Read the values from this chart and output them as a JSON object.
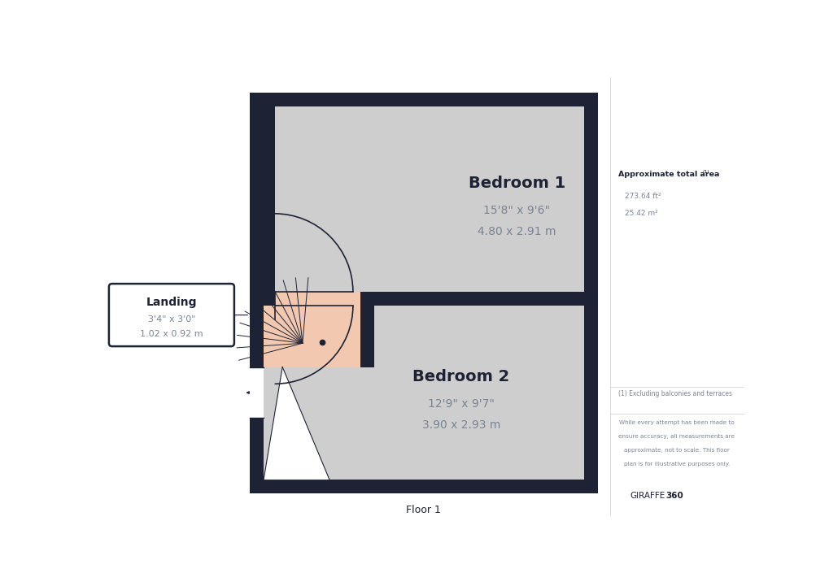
{
  "bg_color": "#ffffff",
  "wall_color": "#1e2235",
  "room_color": "#cecece",
  "stair_color": "#f2c9b0",
  "title": "Floor 1",
  "rooms": [
    {
      "name": "Bedroom 1",
      "dim1": "15'8\" x 9'6\"",
      "dim2": "4.80 x 2.91 m"
    },
    {
      "name": "Bedroom 2",
      "dim1": "12'9\" x 9'7\"",
      "dim2": "3.90 x 2.93 m"
    }
  ],
  "landing_label": "Landing",
  "landing_dim1": "3'4\" x 3'0\"",
  "landing_dim2": "1.02 x 0.92 m",
  "sidebar_area_title": "Approximate total area",
  "sidebar_superscript": "(1)",
  "sidebar_ft2": "273.64 ft²",
  "sidebar_m2": "25.42 m²",
  "sidebar_note1": "(1) Excluding balconies and terraces",
  "sidebar_note2": "While every attempt has been made to\nensure accuracy, all measurements are\napproximate, not to scale. This floor\nplan is for illustrative purposes only.",
  "text_color_dark": "#1e2235",
  "text_color_mid": "#7a8494"
}
